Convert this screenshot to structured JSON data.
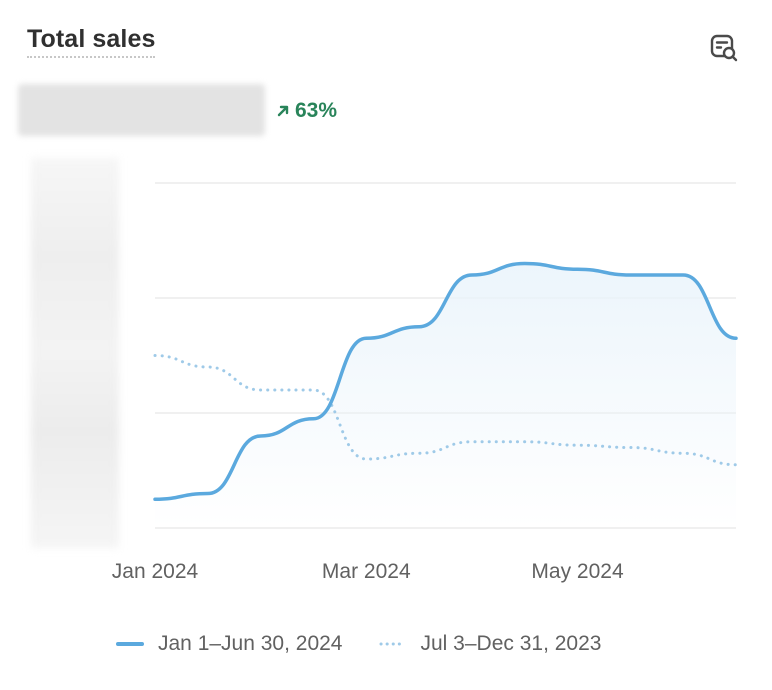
{
  "card": {
    "title": "Total sales",
    "toolbar_icon": "analytics-search-icon"
  },
  "metric": {
    "value_hidden": true,
    "change": "63%",
    "change_icon": "arrow-up-right-icon",
    "change_color": "#29845a"
  },
  "colors": {
    "current_series": "#5ba9de",
    "previous_series": "#9fcae8",
    "area_fill": "#eaf4fb",
    "gridline": "#ebebeb"
  },
  "chart_data": {
    "type": "line",
    "x": [
      "Jan 1",
      "Jan 15",
      "Feb 1",
      "Feb 15",
      "Mar 1",
      "Mar 15",
      "Apr 1",
      "Apr 15",
      "May 1",
      "May 15",
      "Jun 1",
      "Jun 15"
    ],
    "xtick_labels": [
      "Jan 2024",
      "Mar 2024",
      "May 2024"
    ],
    "ytick_labels_hidden": true,
    "grid": true,
    "ylim": [
      0,
      3
    ],
    "series": [
      {
        "name": "Jan 1–Jun 30, 2024",
        "style": "solid",
        "values": [
          0.25,
          0.3,
          0.8,
          0.95,
          1.65,
          1.75,
          2.2,
          2.3,
          2.25,
          2.2,
          2.2,
          1.65
        ]
      },
      {
        "name": "Jul 3–Dec 31, 2023",
        "style": "dotted",
        "values": [
          1.5,
          1.4,
          1.2,
          1.2,
          0.6,
          0.65,
          0.75,
          0.75,
          0.72,
          0.7,
          0.65,
          0.55
        ]
      }
    ]
  },
  "legend": [
    {
      "label": "Jan 1–Jun 30, 2024",
      "style": "solid"
    },
    {
      "label": "Jul 3–Dec 31, 2023",
      "style": "dotted"
    }
  ]
}
